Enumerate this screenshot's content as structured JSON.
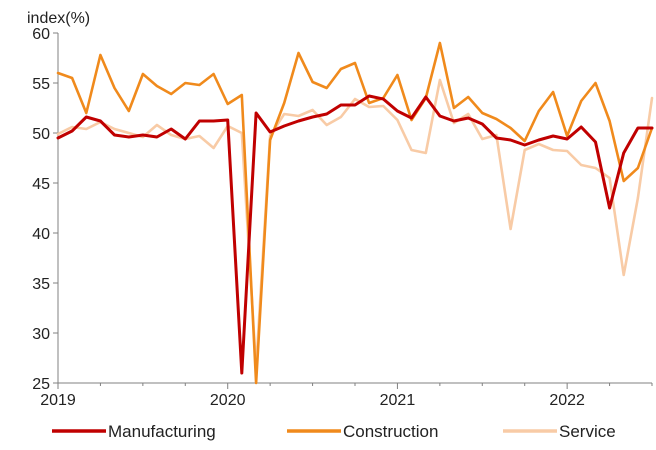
{
  "chart_data": {
    "type": "line",
    "title": "",
    "unit_label": "index(%)",
    "ylim": [
      25,
      60
    ],
    "yticks": [
      25,
      30,
      35,
      40,
      45,
      50,
      55,
      60
    ],
    "xlim": [
      2019.0,
      2022.5
    ],
    "xticks": [
      {
        "label": "2019",
        "value": 2019.0
      },
      {
        "label": "2020",
        "value": 2020.0
      },
      {
        "label": "2021",
        "value": 2021.0
      },
      {
        "label": "2022",
        "value": 2022.0
      }
    ],
    "grid": false,
    "legend_position": "bottom",
    "x": [
      2019.0,
      2019.083,
      2019.167,
      2019.25,
      2019.333,
      2019.417,
      2019.5,
      2019.583,
      2019.667,
      2019.75,
      2019.833,
      2019.917,
      2020.0,
      2020.083,
      2020.167,
      2020.25,
      2020.333,
      2020.417,
      2020.5,
      2020.583,
      2020.667,
      2020.75,
      2020.833,
      2020.917,
      2021.0,
      2021.083,
      2021.167,
      2021.25,
      2021.333,
      2021.417,
      2021.5,
      2021.583,
      2021.667,
      2021.75,
      2021.833,
      2021.917,
      2022.0,
      2022.083,
      2022.167,
      2022.25,
      2022.333,
      2022.417,
      2022.5
    ],
    "series": [
      {
        "name": "Manufacturing",
        "color": "#c00000",
        "values": [
          49.5,
          50.2,
          51.6,
          51.2,
          49.8,
          49.6,
          49.8,
          49.6,
          50.4,
          49.4,
          51.2,
          51.2,
          51.3,
          26.0,
          52.0,
          50.1,
          50.7,
          51.2,
          51.6,
          51.9,
          52.8,
          52.8,
          53.7,
          53.4,
          52.2,
          51.5,
          53.6,
          51.7,
          51.2,
          51.5,
          50.9,
          49.5,
          49.3,
          48.8,
          49.3,
          49.7,
          49.4,
          50.6,
          49.1,
          42.5,
          48.0,
          50.5,
          50.5
        ]
      },
      {
        "name": "Construction",
        "color": "#f08a1c",
        "values": [
          56.0,
          55.5,
          52.0,
          57.8,
          54.5,
          52.2,
          55.9,
          54.7,
          53.9,
          55.0,
          54.8,
          55.9,
          52.9,
          53.8,
          25.0,
          49.3,
          53.0,
          58.0,
          55.1,
          54.5,
          56.4,
          57.0,
          53.0,
          53.5,
          55.8,
          51.3,
          53.5,
          59.0,
          52.5,
          53.6,
          52.0,
          51.4,
          50.5,
          49.2,
          52.2,
          54.1,
          49.7,
          53.2,
          55.0,
          51.2,
          45.2,
          46.5,
          50.5
        ]
      },
      {
        "name": "Service",
        "color": "#f8cba6",
        "values": [
          49.9,
          50.6,
          50.4,
          51.1,
          50.4,
          50.0,
          49.6,
          50.8,
          49.8,
          49.4,
          49.7,
          48.5,
          50.7,
          50.0,
          26.5,
          49.7,
          51.9,
          51.7,
          52.3,
          50.8,
          51.6,
          53.4,
          52.6,
          52.7,
          51.3,
          48.3,
          48.0,
          55.3,
          51.0,
          51.9,
          49.4,
          49.8,
          40.4,
          48.3,
          48.9,
          48.3,
          48.2,
          46.8,
          46.5,
          45.5,
          35.8,
          43.5,
          53.5
        ]
      }
    ]
  }
}
